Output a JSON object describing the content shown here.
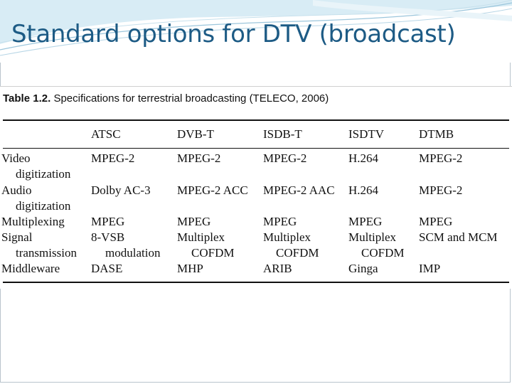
{
  "slide": {
    "title": "Standard options for DTV (broadcast)"
  },
  "table": {
    "caption_label": "Table 1.2.",
    "caption_text": "Specifications for terrestrial broadcasting (TELECO, 2006)",
    "headers": [
      "ATSC",
      "DVB-T",
      "ISDB-T",
      "ISDTV",
      "DTMB"
    ],
    "rows": {
      "video": {
        "label": [
          "Video",
          "digitization"
        ],
        "cells": [
          "MPEG-2",
          "MPEG-2",
          "MPEG-2",
          "H.264",
          "MPEG-2"
        ]
      },
      "audio": {
        "label": [
          "Audio",
          "digitization"
        ],
        "cells": [
          "Dolby AC-3",
          "MPEG-2 ACC",
          "MPEG-2 AAC",
          "H.264",
          "MPEG-2"
        ]
      },
      "multiplexing": {
        "label": [
          "Multiplexing"
        ],
        "cells": [
          "MPEG",
          "MPEG",
          "MPEG",
          "MPEG",
          "MPEG"
        ]
      },
      "signal": {
        "label": [
          "Signal",
          "transmission"
        ],
        "cells_line1": [
          "8-VSB",
          "Multiplex",
          "Multiplex",
          "Multiplex",
          "SCM and MCM"
        ],
        "cells_line2": [
          "modulation",
          "COFDM",
          "COFDM",
          "COFDM",
          ""
        ]
      },
      "middleware": {
        "label": [
          "Middleware"
        ],
        "cells": [
          "DASE",
          "MHP",
          "ARIB",
          "Ginga",
          "IMP"
        ]
      }
    }
  }
}
